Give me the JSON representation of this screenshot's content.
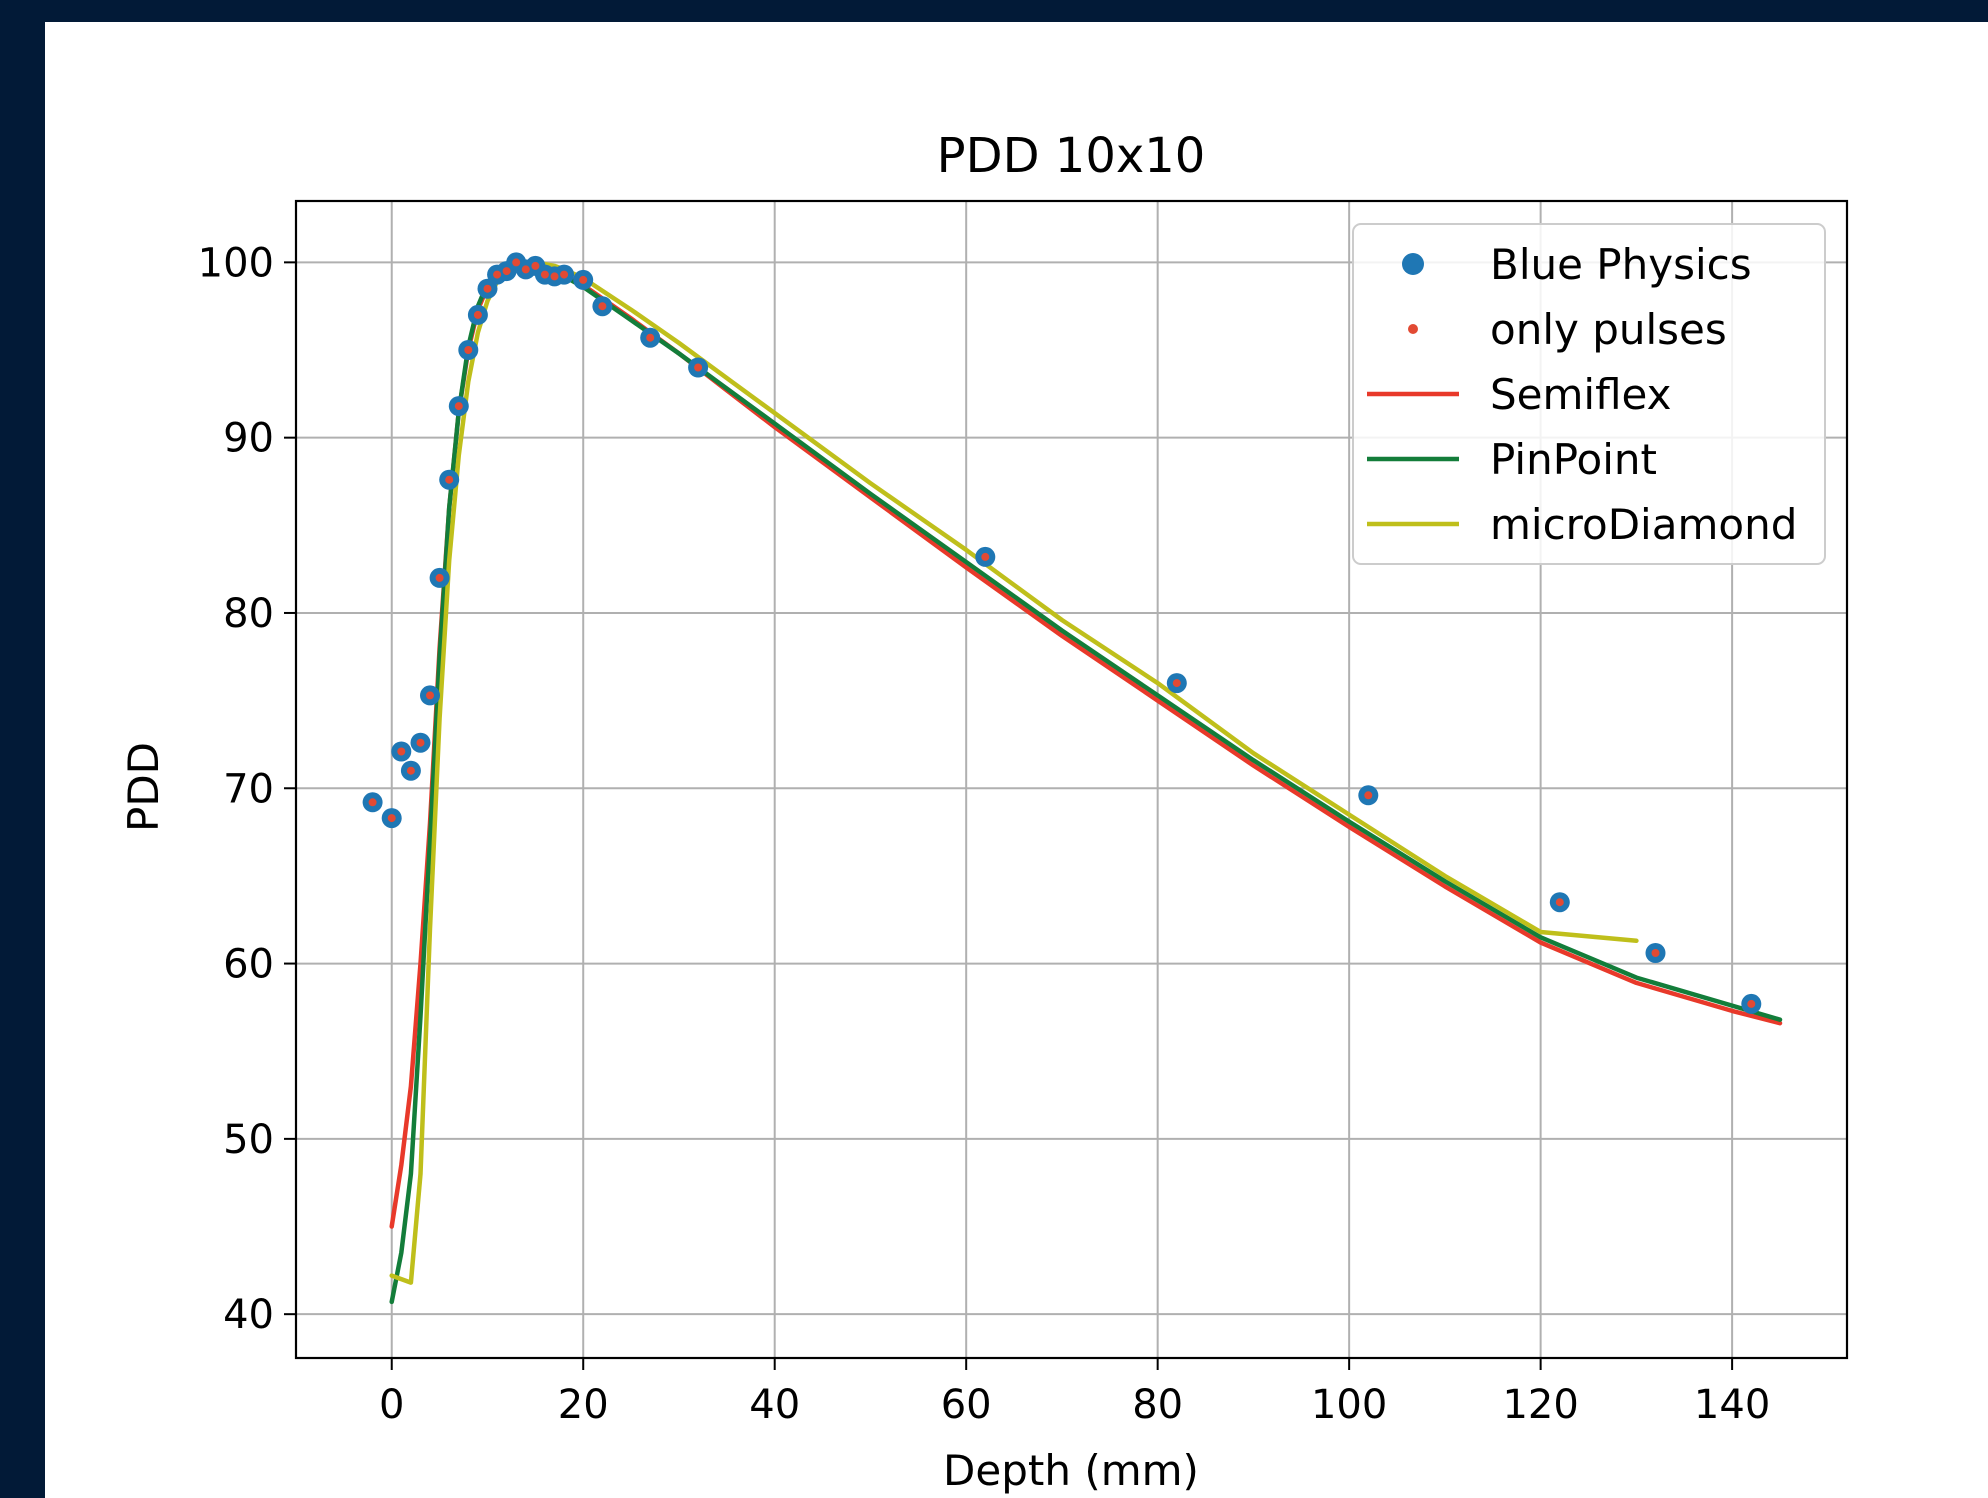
{
  "colors": {
    "background": "#021a37",
    "panel": "#ffffff",
    "grid": "#b0b0b0",
    "blue_physics": "#1f77b4",
    "only_pulses": "#e24a33",
    "semiflex": "#e8392a",
    "pinpoint": "#137d3a",
    "microdiamond": "#bfbf1b"
  },
  "chart_data": {
    "type": "line",
    "title": "PDD 10x10",
    "xlabel": "Depth (mm)",
    "ylabel": "PDD",
    "xlim": [
      -10,
      152
    ],
    "ylim": [
      37.5,
      103.5
    ],
    "xticks": [
      0,
      20,
      40,
      60,
      80,
      100,
      120,
      140
    ],
    "yticks": [
      40,
      50,
      60,
      70,
      80,
      90,
      100
    ],
    "grid": true,
    "legend_position": "top-right",
    "series": [
      {
        "name": "Blue Physics",
        "kind": "scatter",
        "color": "#1f77b4",
        "x": [
          -2,
          0,
          1,
          2,
          3,
          4,
          5,
          6,
          7,
          8,
          9,
          10,
          11,
          12,
          13,
          14,
          15,
          16,
          17,
          18,
          20,
          22,
          27,
          32,
          62,
          82,
          102,
          122,
          132,
          142
        ],
        "y": [
          69.2,
          68.3,
          72.1,
          71.0,
          72.6,
          75.3,
          82.0,
          87.6,
          91.8,
          95.0,
          97.0,
          98.5,
          99.3,
          99.5,
          100.0,
          99.6,
          99.8,
          99.3,
          99.2,
          99.3,
          99.0,
          97.5,
          95.7,
          94.0,
          83.2,
          76.0,
          69.6,
          63.5,
          60.6,
          57.7
        ]
      },
      {
        "name": "only pulses",
        "kind": "scatter",
        "color": "#e24a33",
        "x": [
          -2,
          0,
          1,
          2,
          3,
          4,
          5,
          6,
          7,
          8,
          9,
          10,
          11,
          12,
          13,
          14,
          15,
          16,
          17,
          18,
          20,
          22,
          27,
          32,
          62,
          82,
          102,
          122,
          132,
          142
        ],
        "y": [
          69.2,
          68.3,
          72.1,
          71.0,
          72.6,
          75.3,
          82.0,
          87.6,
          91.8,
          95.0,
          97.0,
          98.5,
          99.3,
          99.5,
          100.0,
          99.6,
          99.8,
          99.3,
          99.2,
          99.3,
          99.0,
          97.5,
          95.7,
          94.0,
          83.2,
          76.0,
          69.6,
          63.5,
          60.6,
          57.7
        ]
      },
      {
        "name": "Semiflex",
        "kind": "line",
        "color": "#e8392a",
        "x": [
          0,
          1,
          2,
          3,
          4,
          5,
          6,
          7,
          8,
          9,
          10,
          11,
          12,
          13,
          14,
          15,
          16,
          17,
          18,
          20,
          25,
          30,
          35,
          40,
          50,
          60,
          70,
          80,
          90,
          100,
          110,
          120,
          130,
          140,
          145
        ],
        "y": [
          45.0,
          48.5,
          53.0,
          60.0,
          68.0,
          78.0,
          86.0,
          91.5,
          95.0,
          97.3,
          98.6,
          99.3,
          99.7,
          99.9,
          100.0,
          100.0,
          99.8,
          99.6,
          99.3,
          98.7,
          96.8,
          94.8,
          92.7,
          90.6,
          86.6,
          82.6,
          78.7,
          75.0,
          71.3,
          67.8,
          64.4,
          61.2,
          58.9,
          57.3,
          56.6
        ]
      },
      {
        "name": "PinPoint",
        "kind": "line",
        "color": "#137d3a",
        "x": [
          0,
          1,
          2,
          3,
          4,
          5,
          6,
          7,
          8,
          9,
          10,
          11,
          12,
          13,
          14,
          15,
          16,
          17,
          18,
          20,
          25,
          30,
          35,
          40,
          50,
          60,
          70,
          80,
          90,
          100,
          110,
          120,
          130,
          140,
          145
        ],
        "y": [
          40.7,
          43.5,
          48.0,
          57.0,
          67.0,
          77.5,
          86.0,
          91.5,
          95.2,
          97.5,
          98.8,
          99.4,
          99.8,
          100.0,
          100.0,
          99.9,
          99.7,
          99.5,
          99.2,
          98.6,
          96.7,
          94.8,
          92.8,
          90.8,
          86.8,
          82.9,
          79.0,
          75.3,
          71.6,
          68.1,
          64.7,
          61.5,
          59.2,
          57.6,
          56.8
        ]
      },
      {
        "name": "microDiamond",
        "kind": "line",
        "color": "#bfbf1b",
        "x": [
          0,
          1,
          2,
          3,
          4,
          5,
          6,
          7,
          8,
          9,
          10,
          11,
          12,
          13,
          14,
          15,
          16,
          17,
          18,
          20,
          25,
          30,
          35,
          40,
          50,
          60,
          70,
          80,
          90,
          100,
          110,
          120,
          130
        ],
        "y": [
          42.2,
          42.0,
          41.8,
          48.0,
          62.0,
          74.0,
          83.0,
          89.0,
          93.2,
          96.0,
          97.8,
          98.9,
          99.5,
          99.8,
          100.0,
          100.0,
          99.9,
          99.8,
          99.6,
          99.1,
          97.3,
          95.4,
          93.4,
          91.4,
          87.4,
          83.6,
          79.6,
          76.0,
          72.0,
          68.5,
          65.0,
          61.8,
          61.3
        ]
      }
    ]
  }
}
